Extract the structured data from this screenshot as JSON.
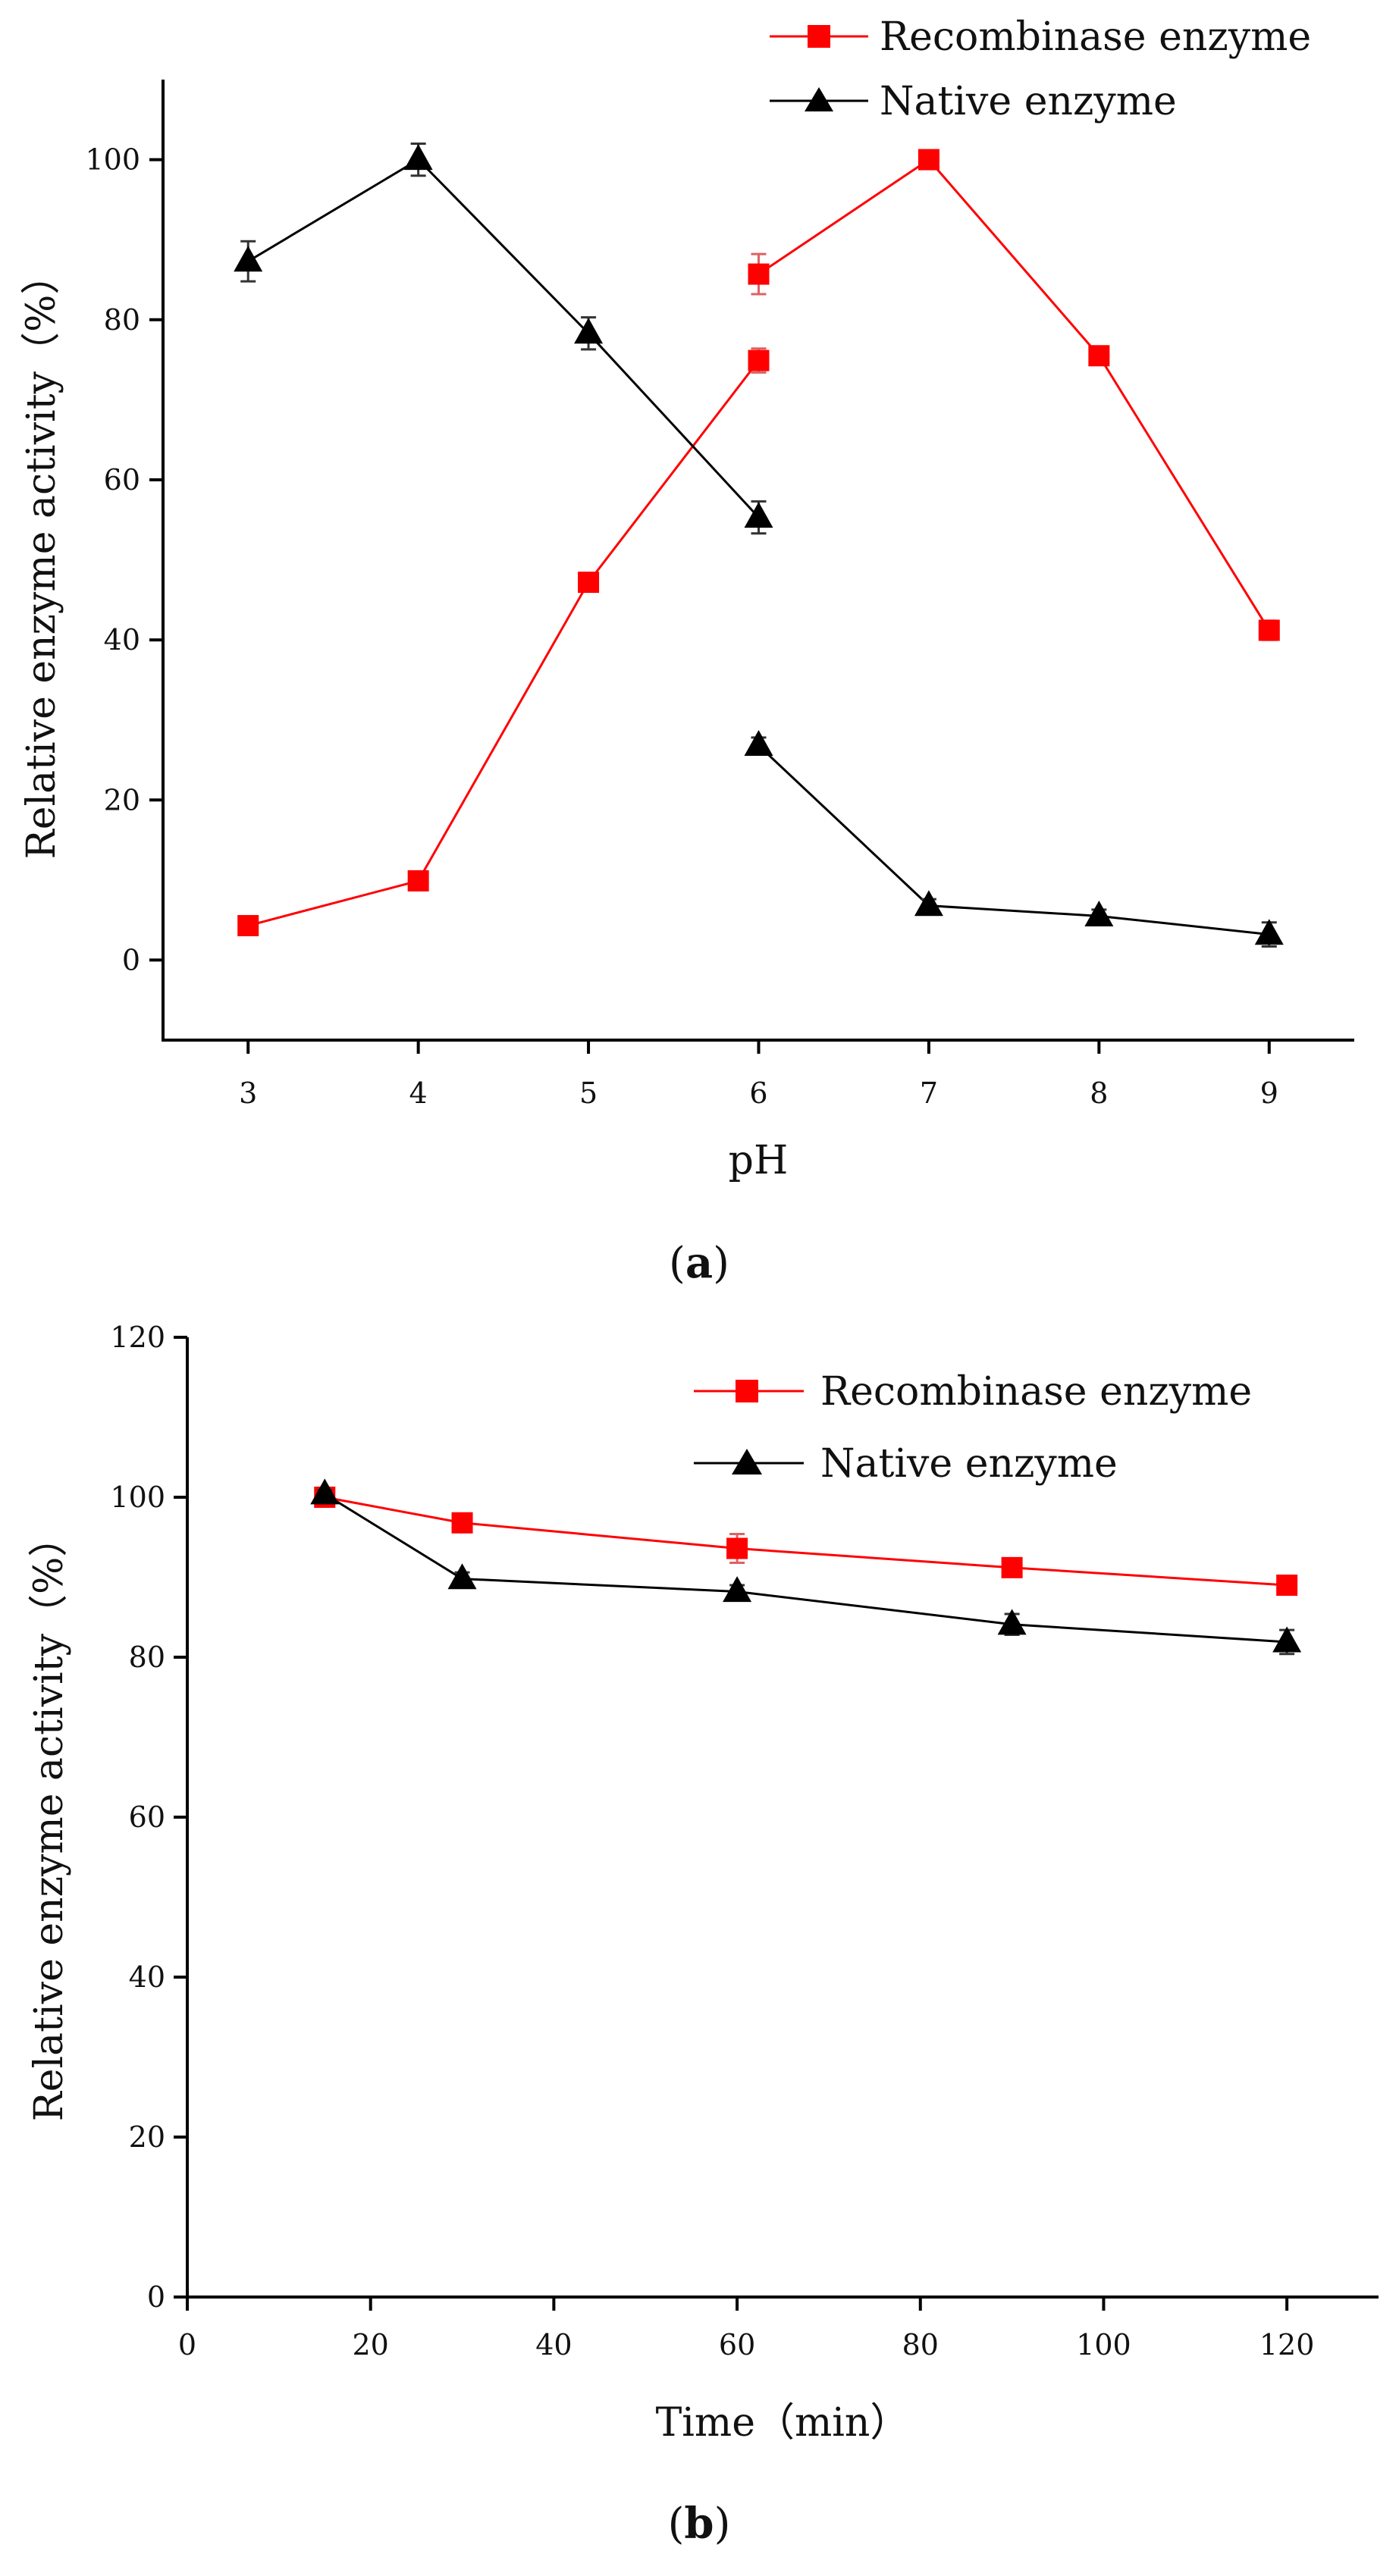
{
  "chart_data": [
    {
      "type": "line",
      "panel_label": "a",
      "xlabel": "pH",
      "ylabel": "Relative enzyme activity（%）",
      "xlim": [
        2.5,
        9.5
      ],
      "ylim": [
        -10,
        110
      ],
      "xticks": [
        "3",
        "4",
        "5",
        "6",
        "7",
        "8",
        "9"
      ],
      "yticks": [
        "0",
        "20",
        "40",
        "60",
        "80",
        "100"
      ],
      "legend_position": "top-right",
      "series": [
        {
          "name": "Recombinase enzyme",
          "color": "#ff0000",
          "marker": "square",
          "segments": [
            [
              [
                3,
                4.3
              ],
              [
                4,
                9.9
              ],
              [
                5,
                47.2
              ],
              [
                6,
                74.9
              ]
            ],
            [
              [
                6,
                85.7
              ],
              [
                7,
                100
              ],
              [
                8,
                75.5
              ],
              [
                9,
                41.2
              ]
            ]
          ],
          "errors": [
            [
              0.5,
              0.5,
              0.8,
              1.5
            ],
            [
              2.5,
              0.5,
              0.6,
              1.2
            ]
          ]
        },
        {
          "name": "Native enzyme",
          "color": "#000000",
          "marker": "triangle",
          "segments": [
            [
              [
                3,
                87.3
              ],
              [
                4,
                100
              ],
              [
                5,
                78.3
              ],
              [
                6,
                55.3
              ]
            ],
            [
              [
                6,
                26.8
              ],
              [
                7,
                6.8
              ],
              [
                8,
                5.5
              ],
              [
                9,
                3.2
              ]
            ]
          ],
          "errors": [
            [
              2.5,
              2.0,
              2.0,
              2.0
            ],
            [
              1.0,
              0.8,
              0.8,
              1.5
            ]
          ]
        }
      ]
    },
    {
      "type": "line",
      "panel_label": "b",
      "xlabel": "Time（min）",
      "ylabel": "Relative enzyme activity（%）",
      "xlim": [
        0,
        130
      ],
      "ylim": [
        0,
        120
      ],
      "xticks": [
        "0",
        "20",
        "40",
        "60",
        "80",
        "100",
        "120"
      ],
      "yticks": [
        "0",
        "20",
        "40",
        "60",
        "80",
        "100",
        "120"
      ],
      "legend_position": "top-right",
      "series": [
        {
          "name": "Recombinase enzyme",
          "color": "#ff0000",
          "marker": "square",
          "segments": [
            [
              [
                15,
                100
              ],
              [
                30,
                96.8
              ],
              [
                60,
                93.6
              ],
              [
                90,
                91.2
              ],
              [
                120,
                89.0
              ]
            ]
          ],
          "errors": [
            [
              0.5,
              0.8,
              1.8,
              0.8,
              0.8
            ]
          ]
        },
        {
          "name": "Native enzyme",
          "color": "#000000",
          "marker": "triangle",
          "segments": [
            [
              [
                15,
                100.4
              ],
              [
                30,
                89.8
              ],
              [
                60,
                88.2
              ],
              [
                90,
                84.1
              ],
              [
                120,
                81.9
              ]
            ]
          ],
          "errors": [
            [
              0.5,
              0.8,
              0.8,
              1.3,
              1.5
            ]
          ]
        }
      ]
    }
  ]
}
